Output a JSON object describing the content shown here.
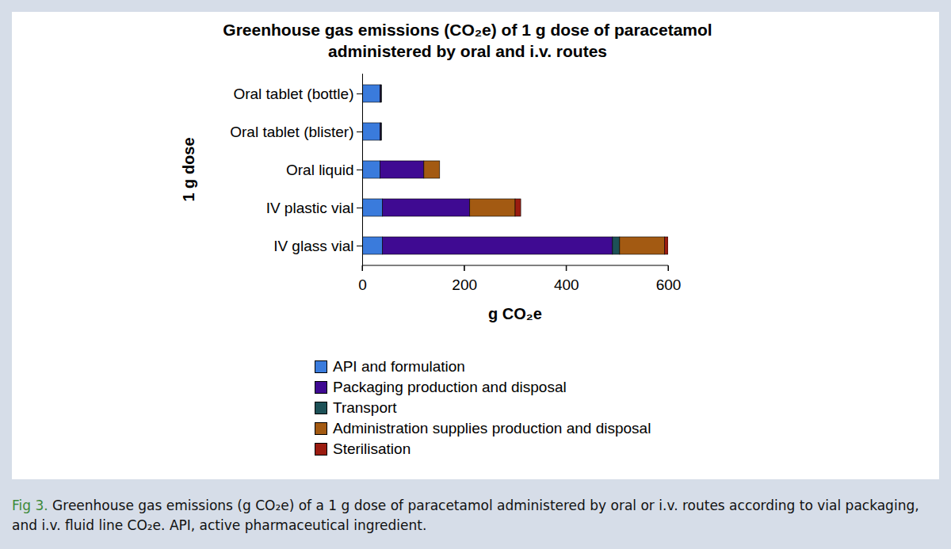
{
  "chart_data": {
    "type": "bar",
    "orientation": "horizontal",
    "stacked": true,
    "title": "Greenhouse gas emissions (CO₂e) of 1 g dose of paracetamol administered by oral and i.v. routes",
    "xlabel": "g CO₂e",
    "ylabel": "1 g dose",
    "categories": [
      "Oral tablet (bottle)",
      "Oral tablet (blister)",
      "Oral liquid",
      "IV plastic vial",
      "IV glass vial"
    ],
    "series": [
      {
        "name": "API and formulation",
        "color": "#3a7bdc",
        "values": [
          35,
          35,
          35,
          40,
          40
        ]
      },
      {
        "name": "Packaging production and disposal",
        "color": "#3f0a92",
        "values": [
          2,
          2,
          86,
          171,
          451
        ]
      },
      {
        "name": "Transport",
        "color": "#1d5157",
        "values": [
          1,
          1,
          0,
          0,
          14
        ]
      },
      {
        "name": "Administration supplies production and disposal",
        "color": "#a35a12",
        "values": [
          0,
          0,
          31,
          89,
          88
        ]
      },
      {
        "name": "Sterilisation",
        "color": "#9b1c10",
        "values": [
          0,
          0,
          0,
          11,
          7
        ]
      }
    ],
    "xlim": [
      0,
      600
    ],
    "xticks": [
      0,
      200,
      400,
      600
    ],
    "grid": false,
    "legend": "bottom",
    "figure_label": "Fig 3.",
    "caption": "Greenhouse gas emissions (g CO₂e) of a 1 g dose of paracetamol administered by oral or i.v. routes according to vial packaging, and i.v. fluid line CO₂e. API, active pharmaceutical ingredient."
  }
}
